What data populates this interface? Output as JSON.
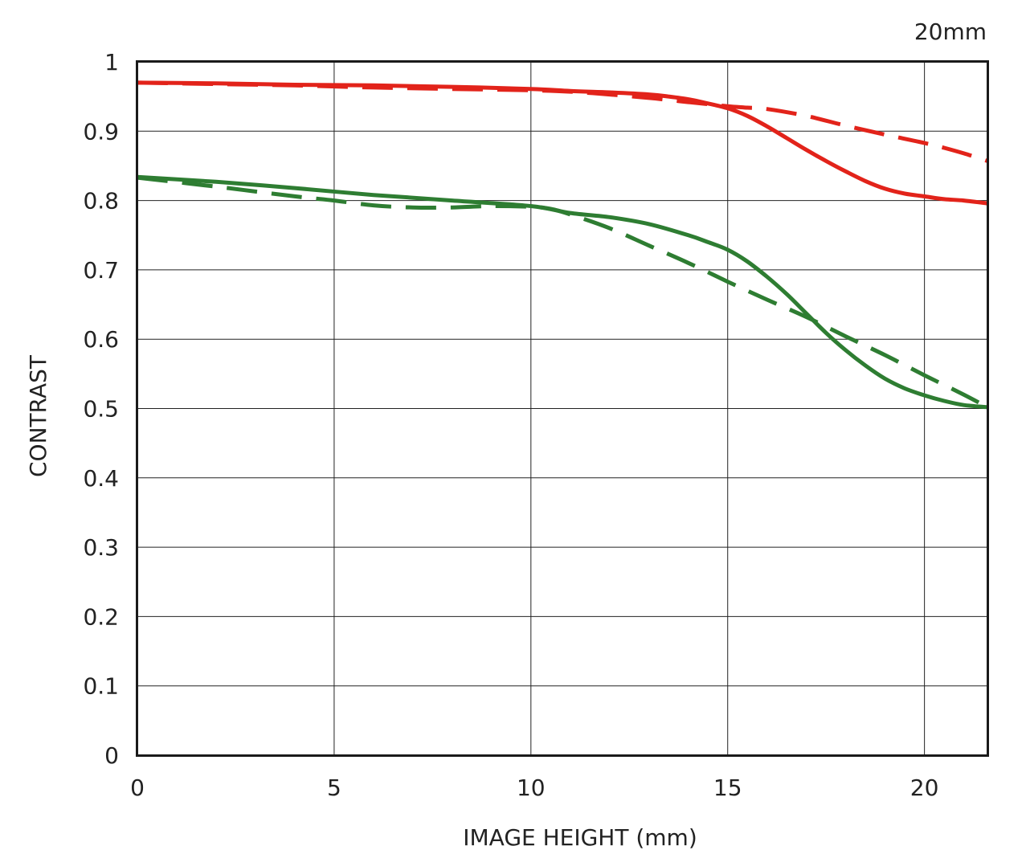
{
  "chart_data": {
    "type": "line",
    "title": "20mm",
    "xlabel": "IMAGE HEIGHT (mm)",
    "ylabel": "CONTRAST",
    "xlim": [
      0,
      21.6
    ],
    "ylim": [
      0,
      1
    ],
    "grid": true,
    "x_ticks": [
      {
        "value": 0,
        "label": "0"
      },
      {
        "value": 5,
        "label": "5"
      },
      {
        "value": 10,
        "label": "10"
      },
      {
        "value": 15,
        "label": "15"
      },
      {
        "value": 20,
        "label": "20"
      }
    ],
    "y_ticks": [
      {
        "value": 0,
        "label": "0"
      },
      {
        "value": 0.1,
        "label": "0.1"
      },
      {
        "value": 0.2,
        "label": "0.2"
      },
      {
        "value": 0.3,
        "label": "0.3"
      },
      {
        "value": 0.4,
        "label": "0.4"
      },
      {
        "value": 0.5,
        "label": "0.5"
      },
      {
        "value": 0.6,
        "label": "0.6"
      },
      {
        "value": 0.7,
        "label": "0.7"
      },
      {
        "value": 0.8,
        "label": "0.8"
      },
      {
        "value": 0.9,
        "label": "0.9"
      },
      {
        "value": 1,
        "label": "1"
      }
    ],
    "series": [
      {
        "color": "#e2231a",
        "style": "solid",
        "x": [
          0,
          2,
          4,
          6,
          8,
          10,
          11,
          12,
          13,
          13.5,
          14,
          14.5,
          15,
          15.5,
          16,
          16.5,
          17,
          17.5,
          18,
          18.5,
          19,
          19.5,
          20,
          20.5,
          21,
          21.6
        ],
        "y": [
          0.97,
          0.969,
          0.967,
          0.966,
          0.964,
          0.961,
          0.958,
          0.956,
          0.953,
          0.95,
          0.946,
          0.94,
          0.933,
          0.922,
          0.907,
          0.89,
          0.873,
          0.857,
          0.842,
          0.828,
          0.817,
          0.81,
          0.806,
          0.802,
          0.8,
          0.796
        ]
      },
      {
        "color": "#e2231a",
        "style": "dashed",
        "x": [
          0,
          2,
          4,
          6,
          8,
          10,
          11,
          12,
          13,
          13.5,
          14,
          14.5,
          15,
          15.5,
          16,
          17,
          18,
          19,
          20,
          20.5,
          21,
          21.6
        ],
        "y": [
          0.97,
          0.968,
          0.966,
          0.963,
          0.961,
          0.959,
          0.957,
          0.953,
          0.948,
          0.945,
          0.942,
          0.939,
          0.936,
          0.934,
          0.932,
          0.922,
          0.908,
          0.895,
          0.883,
          0.876,
          0.868,
          0.857
        ]
      },
      {
        "color": "#2e7d32",
        "style": "solid",
        "x": [
          0,
          2,
          4,
          6,
          8,
          10,
          11,
          12,
          13,
          14,
          14.5,
          15,
          15.5,
          16,
          16.5,
          17,
          17.5,
          18,
          18.5,
          19,
          19.5,
          20,
          20.5,
          21,
          21.6
        ],
        "y": [
          0.834,
          0.827,
          0.818,
          0.808,
          0.8,
          0.792,
          0.782,
          0.776,
          0.766,
          0.75,
          0.74,
          0.729,
          0.712,
          0.69,
          0.665,
          0.637,
          0.609,
          0.584,
          0.562,
          0.543,
          0.529,
          0.519,
          0.511,
          0.505,
          0.502
        ]
      },
      {
        "color": "#2e7d32",
        "style": "dashed",
        "x": [
          0,
          2,
          4,
          5,
          6,
          7,
          8,
          9,
          10,
          10.5,
          11,
          12,
          13,
          14,
          15,
          16,
          17,
          18,
          19,
          20,
          21,
          21.6
        ],
        "y": [
          0.833,
          0.82,
          0.806,
          0.8,
          0.793,
          0.79,
          0.79,
          0.792,
          0.791,
          0.788,
          0.78,
          0.76,
          0.735,
          0.71,
          0.683,
          0.657,
          0.632,
          0.604,
          0.577,
          0.548,
          0.52,
          0.502
        ]
      }
    ]
  }
}
